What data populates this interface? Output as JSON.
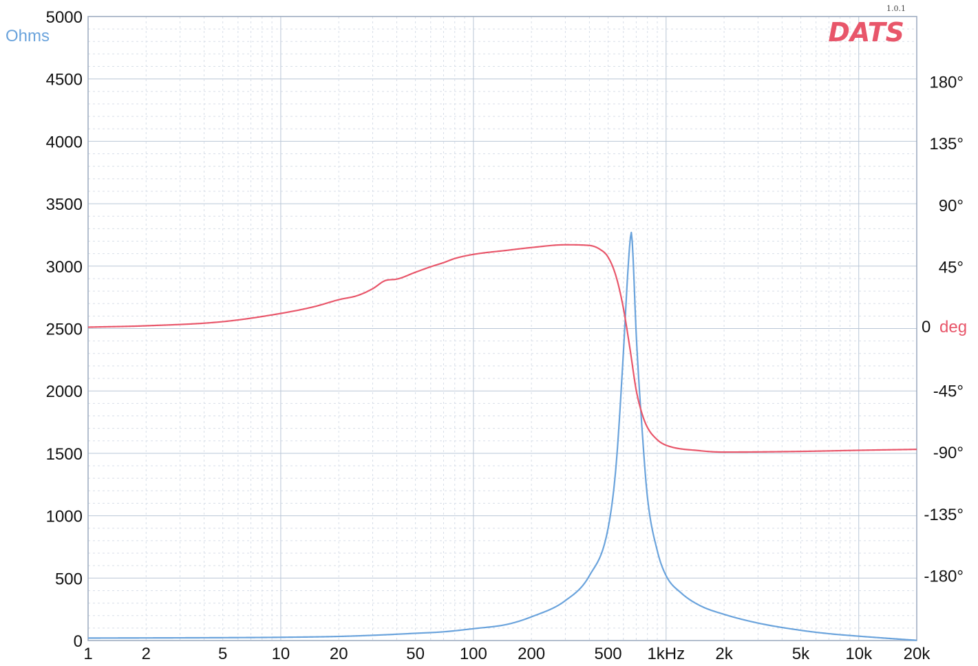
{
  "chart_data": {
    "type": "line",
    "title": "",
    "logo_text": "DATS",
    "version_text": "1.0.1",
    "xscale": "log",
    "xlim": [
      1,
      20000
    ],
    "ylim_left": [
      0,
      5000
    ],
    "ylim_right": [
      -180,
      180
    ],
    "grid": true,
    "colors": {
      "impedance": "#6aa3dc",
      "phase": "#e8566a",
      "logo": "#e8566a",
      "grid_major": "#b9c6d6",
      "grid_minor": "#d7dee8",
      "frame": "#9aa9bd"
    },
    "axes": {
      "left_unit": "Ohms",
      "right_unit_value": "0",
      "right_unit_label": "deg",
      "left_ticks": [
        {
          "value": 0,
          "label": "0"
        },
        {
          "value": 500,
          "label": "500"
        },
        {
          "value": 1000,
          "label": "1000"
        },
        {
          "value": 1500,
          "label": "1500"
        },
        {
          "value": 2000,
          "label": "2000"
        },
        {
          "value": 2500,
          "label": "2500"
        },
        {
          "value": 3000,
          "label": "3000"
        },
        {
          "value": 3500,
          "label": "3500"
        },
        {
          "value": 4000,
          "label": "4000"
        },
        {
          "value": 4500,
          "label": "4500"
        },
        {
          "value": 5000,
          "label": "5000"
        }
      ],
      "right_ticks": [
        {
          "value": 180,
          "label": "180°"
        },
        {
          "value": 135,
          "label": "135°"
        },
        {
          "value": 90,
          "label": "90°"
        },
        {
          "value": 45,
          "label": "45°"
        },
        {
          "value": -45,
          "label": "-45°"
        },
        {
          "value": -90,
          "label": "-90°"
        },
        {
          "value": -135,
          "label": "-135°"
        },
        {
          "value": -180,
          "label": "-180°"
        }
      ],
      "x_ticks": [
        {
          "value": 1,
          "label": "1"
        },
        {
          "value": 2,
          "label": "2"
        },
        {
          "value": 5,
          "label": "5"
        },
        {
          "value": 10,
          "label": "10"
        },
        {
          "value": 20,
          "label": "20"
        },
        {
          "value": 50,
          "label": "50"
        },
        {
          "value": 100,
          "label": "100"
        },
        {
          "value": 200,
          "label": "200"
        },
        {
          "value": 500,
          "label": "500"
        },
        {
          "value": 1000,
          "label": "1kHz"
        },
        {
          "value": 2000,
          "label": "2k"
        },
        {
          "value": 5000,
          "label": "5k"
        },
        {
          "value": 10000,
          "label": "10k"
        },
        {
          "value": 20000,
          "label": "20k"
        }
      ]
    },
    "series": [
      {
        "key": "impedance",
        "axis": "left",
        "points": [
          [
            1,
            20
          ],
          [
            2,
            21
          ],
          [
            5,
            23
          ],
          [
            10,
            26
          ],
          [
            20,
            33
          ],
          [
            30,
            42
          ],
          [
            50,
            58
          ],
          [
            70,
            70
          ],
          [
            100,
            95
          ],
          [
            150,
            130
          ],
          [
            200,
            190
          ],
          [
            300,
            320
          ],
          [
            400,
            520
          ],
          [
            500,
            900
          ],
          [
            550,
            1400
          ],
          [
            600,
            2300
          ],
          [
            630,
            2900
          ],
          [
            650,
            3200
          ],
          [
            660,
            3270
          ],
          [
            670,
            3150
          ],
          [
            700,
            2450
          ],
          [
            750,
            1700
          ],
          [
            800,
            1150
          ],
          [
            900,
            720
          ],
          [
            1000,
            520
          ],
          [
            1200,
            380
          ],
          [
            1500,
            280
          ],
          [
            2000,
            210
          ],
          [
            3000,
            140
          ],
          [
            5000,
            82
          ],
          [
            7000,
            55
          ],
          [
            10000,
            35
          ],
          [
            15000,
            15
          ],
          [
            20000,
            2
          ]
        ]
      },
      {
        "key": "phase",
        "axis": "right",
        "points": [
          [
            1,
            1
          ],
          [
            2,
            2
          ],
          [
            5,
            5
          ],
          [
            10,
            11
          ],
          [
            15,
            16
          ],
          [
            20,
            21
          ],
          [
            25,
            24
          ],
          [
            30,
            29
          ],
          [
            35,
            35
          ],
          [
            40,
            36
          ],
          [
            50,
            41
          ],
          [
            60,
            45
          ],
          [
            70,
            48
          ],
          [
            80,
            51
          ],
          [
            100,
            54
          ],
          [
            150,
            57
          ],
          [
            200,
            59
          ],
          [
            300,
            61
          ],
          [
            400,
            60.5
          ],
          [
            450,
            58
          ],
          [
            500,
            52
          ],
          [
            550,
            38
          ],
          [
            600,
            15
          ],
          [
            650,
            -15
          ],
          [
            700,
            -45
          ],
          [
            750,
            -62
          ],
          [
            800,
            -72
          ],
          [
            900,
            -81
          ],
          [
            1000,
            -85
          ],
          [
            1500,
            -89
          ],
          [
            2000,
            -90
          ],
          [
            5000,
            -89.5
          ],
          [
            10000,
            -88.7
          ],
          [
            20000,
            -88
          ]
        ]
      }
    ]
  }
}
